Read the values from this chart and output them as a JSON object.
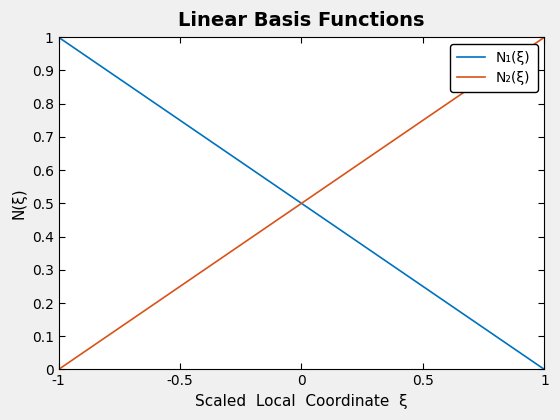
{
  "title": "Linear Basis Functions",
  "xlabel": "Scaled  Local  Coordinate  ξ",
  "ylabel": "N(ξ)",
  "xi_range": [
    -1,
    1
  ],
  "n_points": 500,
  "line1_label": "N₁(ξ)",
  "line2_label": "N₂(ξ)",
  "line1_color": "#0072BD",
  "line2_color": "#D95319",
  "xlim": [
    -1,
    1
  ],
  "ylim": [
    0,
    1
  ],
  "xticks": [
    -1,
    -0.5,
    0,
    0.5,
    1
  ],
  "yticks": [
    0,
    0.1,
    0.2,
    0.3,
    0.4,
    0.5,
    0.6,
    0.7,
    0.8,
    0.9,
    1.0
  ],
  "legend_loc": "upper right",
  "title_fontsize": 14,
  "label_fontsize": 11,
  "tick_fontsize": 10,
  "legend_fontsize": 10,
  "figure_facecolor": "#f0f0f0",
  "axes_facecolor": "#ffffff",
  "linewidth": 1.2
}
